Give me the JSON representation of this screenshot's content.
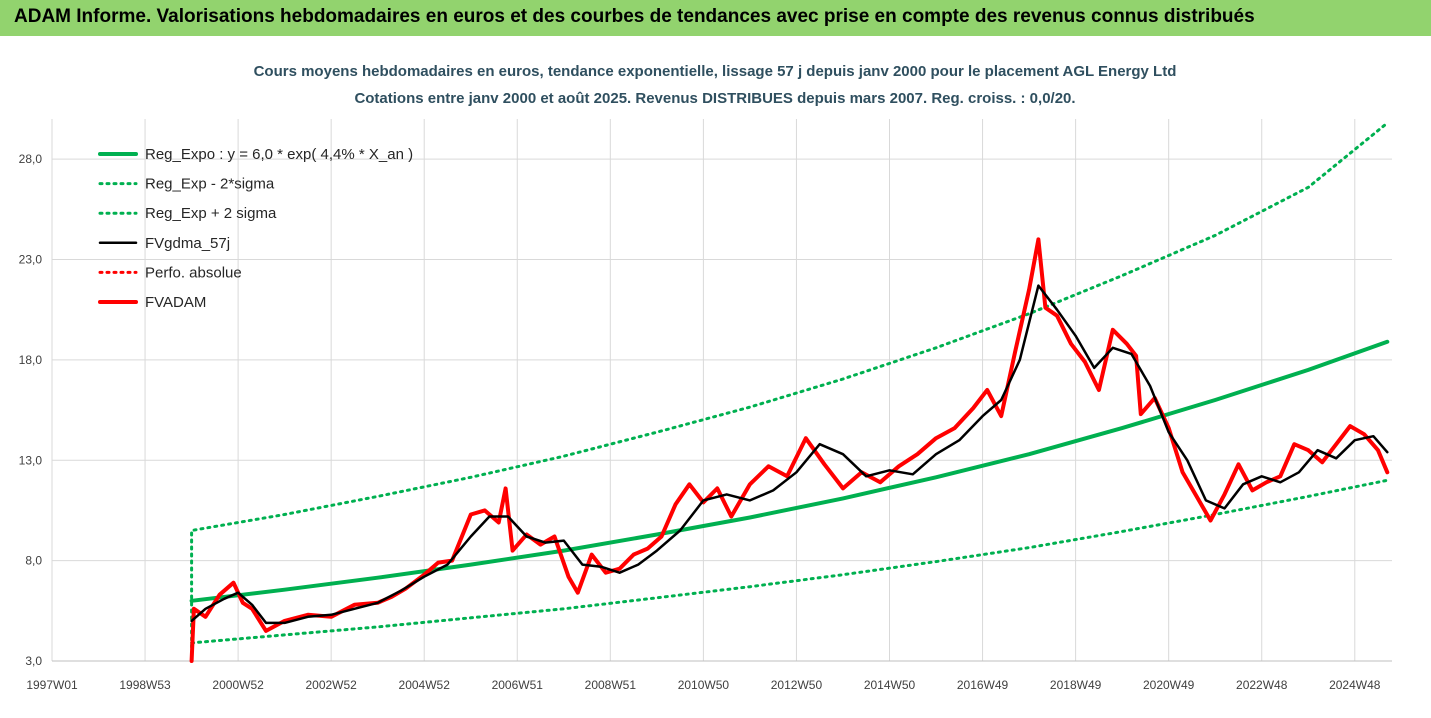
{
  "banner": {
    "title": "ADAM Informe. Valorisations hebdomadaires en euros et des courbes de tendances avec prise en compte des revenus connus distribués"
  },
  "colors": {
    "banner": "#92d36e",
    "green": "#00b050",
    "black": "#000000",
    "red": "#ff0000",
    "grid": "#d9d9d9"
  },
  "chart_data": {
    "type": "line",
    "title": "Cours moyens hebdomadaires en euros, tendance exponentielle, lissage 57 j depuis janv 2000 pour le placement AGL Energy Ltd",
    "subtitle": "Cotations entre janv 2000 et août 2025.  Revenus DISTRIBUES depuis mars 2007. Reg. croiss. : 0,0/20.",
    "xlabel": "",
    "ylabel": "",
    "ylim": [
      3.0,
      30.0
    ],
    "xlim": [
      1997.0,
      2025.8
    ],
    "yticks": [
      "3,0",
      "8,0",
      "13,0",
      "18,0",
      "23,0",
      "28,0"
    ],
    "ytick_values": [
      3,
      8,
      13,
      18,
      23,
      28
    ],
    "xticks": [
      "1997W01",
      "1998W53",
      "2000W52",
      "2002W52",
      "2004W52",
      "2006W51",
      "2008W51",
      "2010W50",
      "2012W50",
      "2014W50",
      "2016W49",
      "2018W49",
      "2020W49",
      "2022W48",
      "2024W48"
    ],
    "xtick_values": [
      1997.0,
      1999.0,
      2001.0,
      2003.0,
      2005.0,
      2007.0,
      2009.0,
      2011.0,
      2013.0,
      2015.0,
      2017.0,
      2019.0,
      2021.0,
      2023.0,
      2025.0
    ],
    "legend_position": "top-left",
    "series": [
      {
        "name": "Reg_Expo : y = 6,0 * exp( 4,4% *  X_an )",
        "style": "solid-thick",
        "color": "#00b050",
        "x": [
          2000.0,
          2002.0,
          2004.0,
          2006.0,
          2008.0,
          2010.0,
          2012.0,
          2014.0,
          2016.0,
          2018.0,
          2020.0,
          2022.0,
          2024.0,
          2025.7
        ],
        "y": [
          6.0,
          6.55,
          7.15,
          7.8,
          8.5,
          9.3,
          10.15,
          11.1,
          12.15,
          13.3,
          14.6,
          16.0,
          17.5,
          18.9
        ]
      },
      {
        "name": "Reg_Exp - 2*sigma",
        "style": "dotted",
        "color": "#00b050",
        "x": [
          2000.0,
          2002.0,
          2004.0,
          2006.0,
          2008.0,
          2010.0,
          2012.0,
          2014.0,
          2016.0,
          2018.0,
          2020.0,
          2022.0,
          2024.0,
          2025.7
        ],
        "y": [
          3.9,
          4.3,
          4.7,
          5.15,
          5.6,
          6.15,
          6.7,
          7.3,
          7.95,
          8.65,
          9.45,
          10.3,
          11.2,
          12.0
        ]
      },
      {
        "name": "Reg_Exp + 2 sigma",
        "style": "dotted",
        "color": "#00b050",
        "x": [
          2000.0,
          2000.0,
          2002.0,
          2004.0,
          2006.0,
          2008.0,
          2010.0,
          2012.0,
          2014.0,
          2016.0,
          2018.0,
          2020.0,
          2022.0,
          2024.0,
          2025.7
        ],
        "y": [
          3.0,
          9.5,
          10.3,
          11.2,
          12.15,
          13.2,
          14.4,
          15.65,
          17.05,
          18.6,
          20.3,
          22.2,
          24.2,
          26.6,
          29.8
        ]
      },
      {
        "name": "FVgdma_57j",
        "style": "solid",
        "color": "#000000",
        "x": [
          2000.0,
          2000.3,
          2000.7,
          2001.0,
          2001.3,
          2001.6,
          2002.0,
          2002.5,
          2003.0,
          2003.5,
          2004.0,
          2004.5,
          2005.0,
          2005.5,
          2006.0,
          2006.4,
          2006.8,
          2007.2,
          2007.6,
          2008.0,
          2008.4,
          2008.8,
          2009.2,
          2009.6,
          2010.0,
          2010.5,
          2011.0,
          2011.5,
          2012.0,
          2012.5,
          2013.0,
          2013.5,
          2014.0,
          2014.5,
          2015.0,
          2015.5,
          2016.0,
          2016.5,
          2017.0,
          2017.4,
          2017.8,
          2018.2,
          2018.6,
          2019.0,
          2019.4,
          2019.8,
          2020.2,
          2020.6,
          2021.0,
          2021.4,
          2021.8,
          2022.2,
          2022.6,
          2023.0,
          2023.4,
          2023.8,
          2024.2,
          2024.6,
          2025.0,
          2025.4,
          2025.7
        ],
        "y": [
          5.0,
          5.6,
          6.1,
          6.4,
          5.8,
          4.9,
          4.9,
          5.2,
          5.3,
          5.6,
          5.9,
          6.5,
          7.2,
          7.8,
          9.2,
          10.2,
          10.2,
          9.2,
          8.9,
          9.0,
          7.8,
          7.7,
          7.4,
          7.8,
          8.5,
          9.5,
          11.0,
          11.3,
          11.0,
          11.5,
          12.4,
          13.8,
          13.3,
          12.2,
          12.5,
          12.3,
          13.3,
          14.0,
          15.2,
          16.0,
          18.0,
          21.7,
          20.5,
          19.2,
          17.6,
          18.6,
          18.3,
          16.7,
          14.4,
          13.0,
          11.0,
          10.6,
          11.8,
          12.2,
          11.9,
          12.4,
          13.5,
          13.1,
          14.0,
          14.2,
          13.4
        ]
      },
      {
        "name": "Perfo. absolue",
        "style": "dotted",
        "color": "#ff0000",
        "x": [],
        "y": []
      },
      {
        "name": "FVADAM",
        "style": "solid-thick",
        "color": "#ff0000",
        "x": [
          2000.0,
          2000.05,
          2000.3,
          2000.6,
          2000.9,
          2001.1,
          2001.3,
          2001.6,
          2002.0,
          2002.5,
          2003.0,
          2003.5,
          2004.0,
          2004.3,
          2004.6,
          2005.0,
          2005.3,
          2005.6,
          2006.0,
          2006.3,
          2006.6,
          2006.75,
          2006.9,
          2007.2,
          2007.5,
          2007.8,
          2008.1,
          2008.3,
          2008.6,
          2008.9,
          2009.2,
          2009.5,
          2009.8,
          2010.1,
          2010.4,
          2010.7,
          2011.0,
          2011.3,
          2011.6,
          2012.0,
          2012.4,
          2012.8,
          2013.2,
          2013.6,
          2014.0,
          2014.4,
          2014.8,
          2015.2,
          2015.6,
          2016.0,
          2016.4,
          2016.8,
          2017.1,
          2017.4,
          2017.7,
          2018.0,
          2018.2,
          2018.35,
          2018.6,
          2018.9,
          2019.2,
          2019.5,
          2019.8,
          2020.1,
          2020.3,
          2020.4,
          2020.7,
          2021.0,
          2021.3,
          2021.6,
          2021.9,
          2022.2,
          2022.5,
          2022.8,
          2023.1,
          2023.4,
          2023.7,
          2024.0,
          2024.3,
          2024.6,
          2024.9,
          2025.2,
          2025.5,
          2025.7
        ],
        "y": [
          3.0,
          5.6,
          5.2,
          6.3,
          6.9,
          5.9,
          5.6,
          4.5,
          5.0,
          5.3,
          5.2,
          5.8,
          5.9,
          6.2,
          6.6,
          7.3,
          7.9,
          8.0,
          10.3,
          10.5,
          9.9,
          11.6,
          8.5,
          9.3,
          8.8,
          9.2,
          7.2,
          6.4,
          8.3,
          7.4,
          7.6,
          8.3,
          8.6,
          9.2,
          10.8,
          11.8,
          10.9,
          11.6,
          10.2,
          11.8,
          12.7,
          12.2,
          14.1,
          12.8,
          11.6,
          12.4,
          11.9,
          12.7,
          13.3,
          14.1,
          14.6,
          15.6,
          16.5,
          15.2,
          18.4,
          21.5,
          24.0,
          20.6,
          20.2,
          18.8,
          17.9,
          16.5,
          19.5,
          18.8,
          18.2,
          15.3,
          16.1,
          14.6,
          12.4,
          11.2,
          10.0,
          11.3,
          12.8,
          11.5,
          11.9,
          12.2,
          13.8,
          13.5,
          12.9,
          13.8,
          14.7,
          14.3,
          13.5,
          12.4
        ]
      }
    ]
  }
}
